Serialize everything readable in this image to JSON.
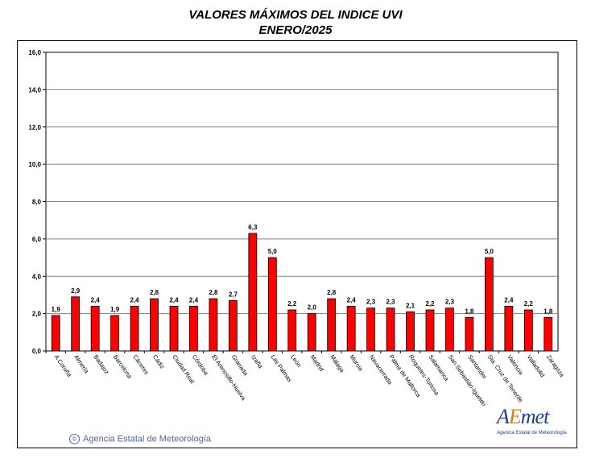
{
  "header": {
    "title_line1": "VALORES MÁXIMOS DEL INDICE UVI",
    "title_line2": "ENERO/2025"
  },
  "footer": {
    "agency_text": "Agencia Estatal de Meteorología",
    "copyright_symbol": "©"
  },
  "logo": {
    "wordmark_a": "A",
    "wordmark_e": "E",
    "wordmark_rest": "met",
    "subtitle": "Agencia Estatal de Meteorología"
  },
  "colors": {
    "bar_fill": "#ff0000",
    "bar_stroke": "#000000",
    "grid": "#808080",
    "footer_text": "#4a64b4",
    "logo_blue": "#1e3c96",
    "logo_orange": "#e07a10"
  },
  "chart_data": {
    "type": "bar",
    "title": "VALORES MÁXIMOS DEL INDICE UVI\nENERO/2025",
    "ylim": [
      0,
      16
    ],
    "yticks": [
      "0,0",
      "2,0",
      "4,0",
      "6,0",
      "8,0",
      "10,0",
      "12,0",
      "14,0",
      "16,0"
    ],
    "grid": true,
    "categories": [
      "A Coruña",
      "Almería",
      "Badajoz",
      "Barcelona",
      "Cáceres",
      "Cádiz",
      "Ciudad Real",
      "Córdoba",
      "El Arenosillo-Huelva",
      "Granada",
      "Izaña",
      "Las Palmas",
      "León",
      "Madrid",
      "Málaga",
      "Murcia",
      "Navacerrada",
      "Palma de Mallorca",
      "Roquetes-Tortosa",
      "Salamanca",
      "San Sebastián-Igueldo",
      "Santander",
      "Sta. Cruz de Tenerife",
      "Valencia",
      "Valladolid",
      "Zaragoza"
    ],
    "values": [
      1.9,
      2.9,
      2.4,
      1.9,
      2.4,
      2.8,
      2.4,
      2.4,
      2.8,
      2.7,
      6.3,
      5.0,
      2.2,
      2.0,
      2.8,
      2.4,
      2.3,
      2.3,
      2.1,
      2.2,
      2.3,
      1.8,
      5.0,
      2.4,
      2.2,
      1.8
    ],
    "value_labels": [
      "1,9",
      "2,9",
      "2,4",
      "1,9",
      "2,4",
      "2,8",
      "2,4",
      "2,4",
      "2,8",
      "2,7",
      "6,3",
      "5,0",
      "2,2",
      "2,0",
      "2,8",
      "2,4",
      "2,3",
      "2,3",
      "2,1",
      "2,2",
      "2,3",
      "1,8",
      "5,0",
      "2,4",
      "2,2",
      "1,8"
    ]
  }
}
